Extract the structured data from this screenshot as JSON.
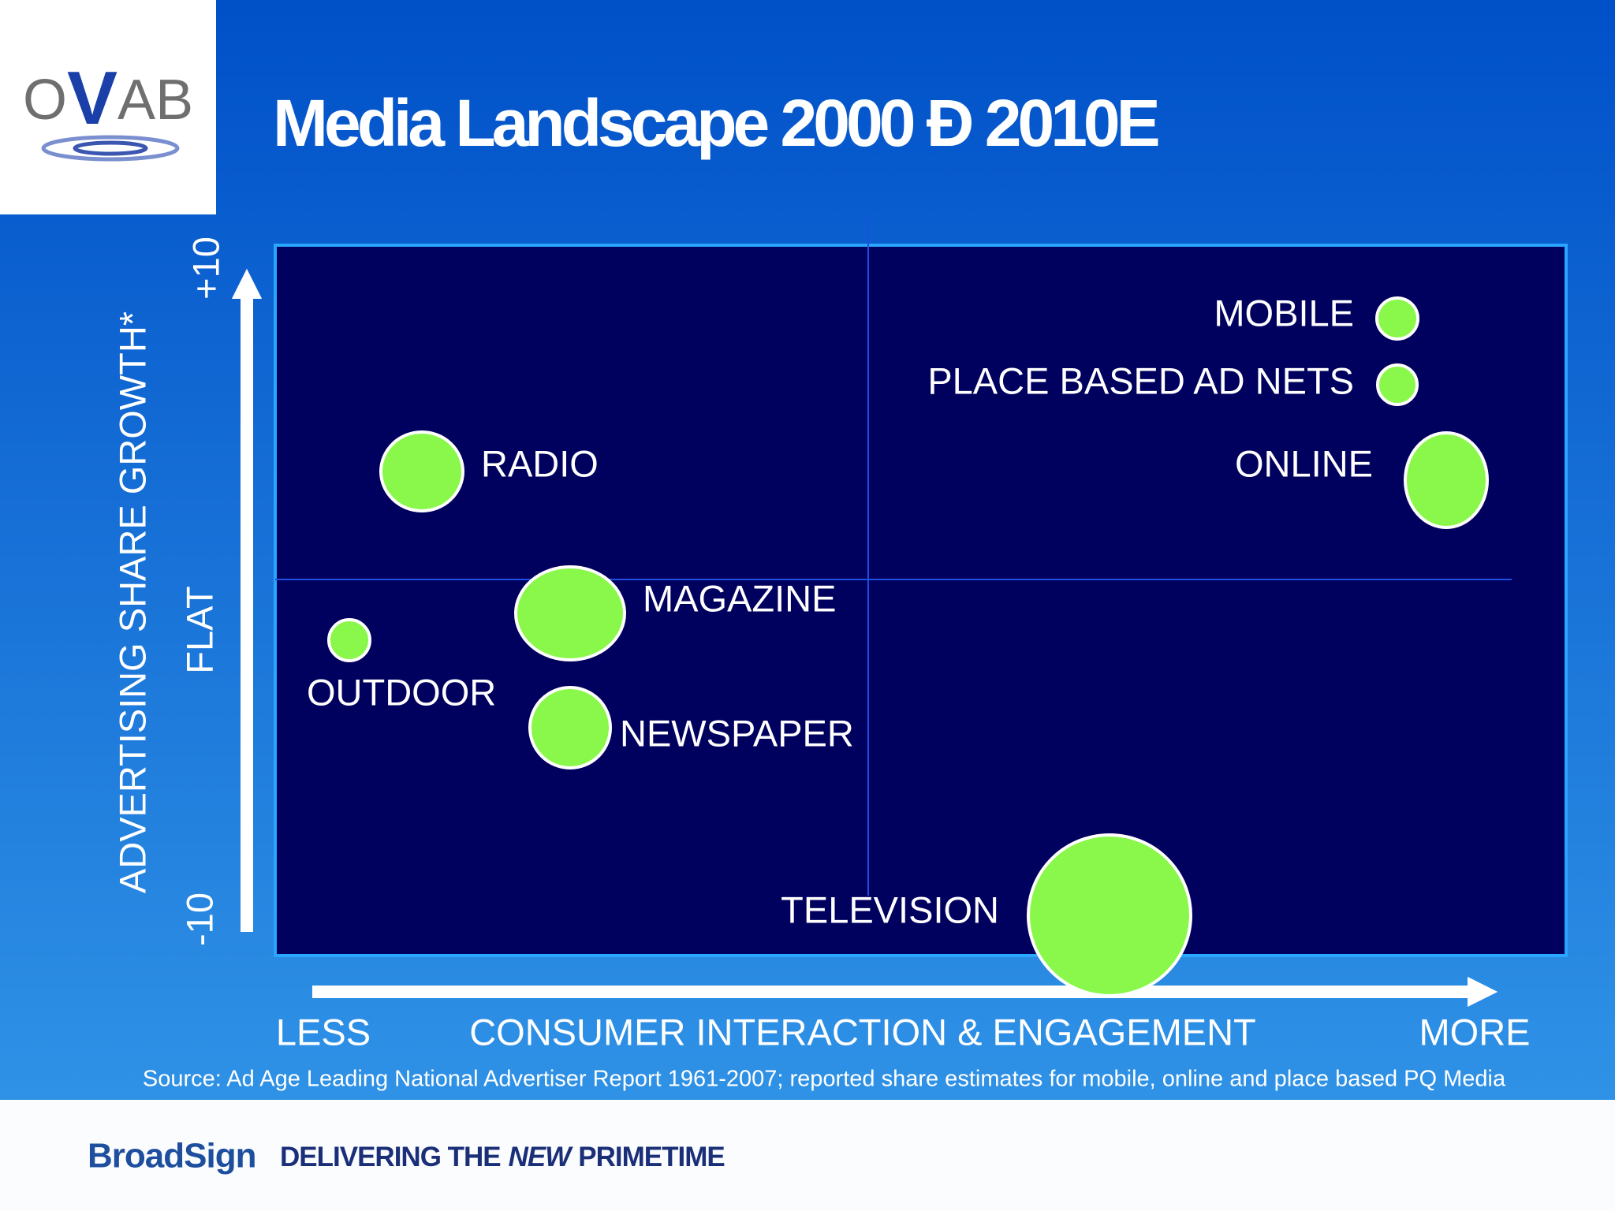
{
  "logo": {
    "parts": [
      "O",
      "V",
      "AB"
    ]
  },
  "header": {
    "title": "Media Landscape 2000 Ð 2010E"
  },
  "y_axis": {
    "label": "ADVERTISING SHARE GROWTH*",
    "top": "+10",
    "middle": "FLAT",
    "bottom": "-10"
  },
  "x_axis": {
    "label": "CONSUMER INTERACTION & ENGAGEMENT",
    "left": "LESS",
    "right": "MORE"
  },
  "items": [
    "MOBILE",
    "PLACE BASED AD NETS",
    "ONLINE",
    "RADIO",
    "MAGAZINE",
    "OUTDOOR",
    "NEWSPAPER",
    "TELEVISION"
  ],
  "source": "Source:  Ad Age Leading National Advertiser Report 1961-2007; reported share estimates for mobile, online and place based PQ Media",
  "footer": {
    "brand": "BroadSign",
    "tagline": [
      "DELIVERING THE",
      "NEW",
      "PRIMETIME"
    ]
  }
}
